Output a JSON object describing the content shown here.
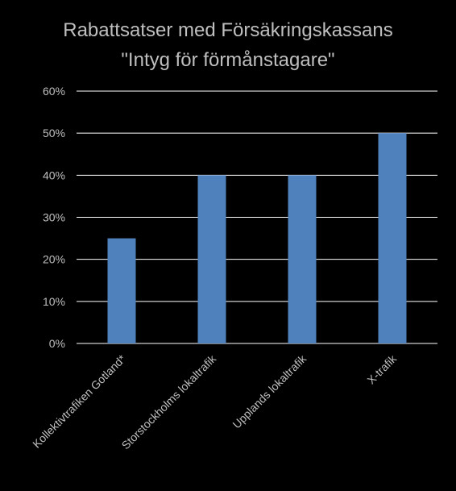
{
  "chart_data": {
    "type": "bar",
    "title_lines": [
      "Rabattsatser med Försäkringskassans",
      "\"Intyg för förmånstagare\""
    ],
    "categories": [
      "Kollektivtrafiken Gotland*",
      "Storstockholms lokaltrafik",
      "Upplands lokaltrafik",
      "X-trafik"
    ],
    "values": [
      25,
      40,
      40,
      50
    ],
    "y_ticks": [
      "0%",
      "10%",
      "20%",
      "30%",
      "40%",
      "50%",
      "60%"
    ],
    "ylim": [
      0,
      60
    ],
    "y_unit": "%",
    "grid": true,
    "legend": "none",
    "colors": {
      "background": "#000000",
      "bar": "#4f81bd",
      "grid": "#ffffff",
      "text": "#bfbfbf"
    }
  }
}
